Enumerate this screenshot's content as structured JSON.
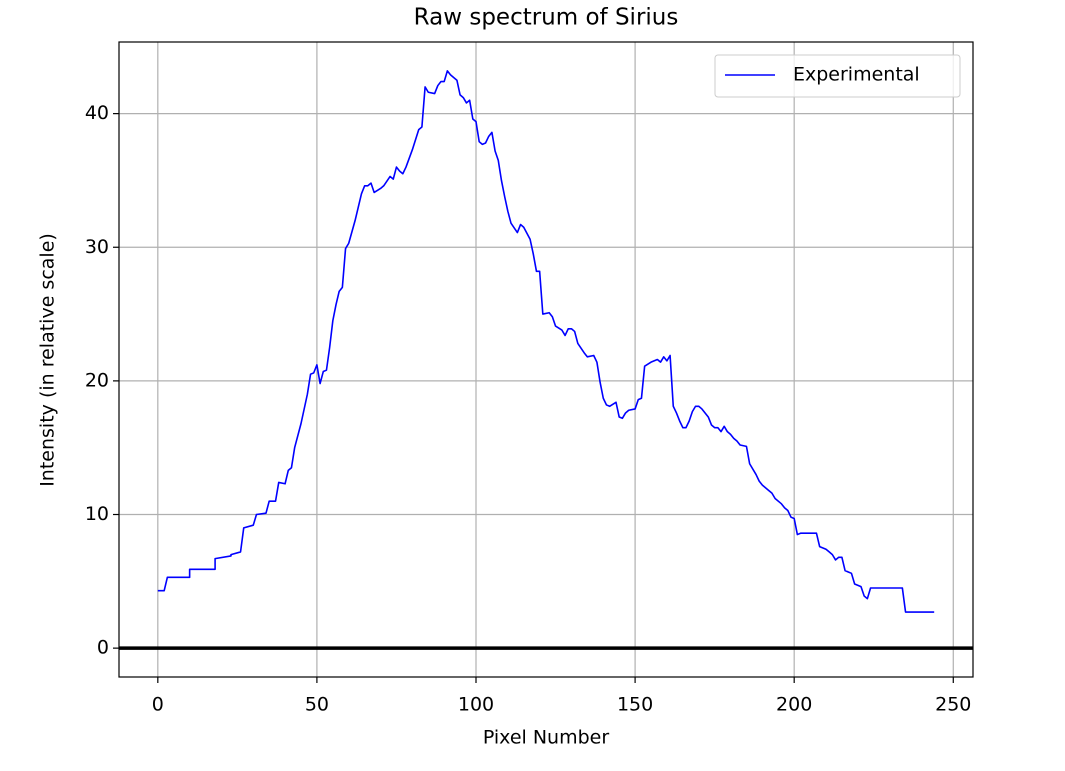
{
  "chart_data": {
    "type": "line",
    "title": "Raw spectrum of Sirius",
    "x_label": "Pixel Number",
    "y_label": "Intensity (in relative scale)",
    "xlim": [
      -12.2,
      256.2
    ],
    "ylim": [
      -2.16,
      45.36
    ],
    "xticks": [
      0,
      50,
      100,
      150,
      200,
      250
    ],
    "yticks": [
      0,
      10,
      20,
      30,
      40
    ],
    "grid": true,
    "legend": "upper right",
    "hline": 0,
    "series": [
      {
        "name": "Experimental",
        "color": "#0000ff",
        "x": [
          0,
          2,
          3,
          10,
          10,
          18,
          18,
          23,
          23,
          26,
          27,
          30,
          31,
          34,
          35,
          37,
          38,
          40,
          41,
          42,
          43,
          45,
          47,
          48,
          49,
          50,
          51,
          52,
          53,
          54,
          55,
          56,
          57,
          58,
          59,
          60,
          62,
          63,
          64,
          65,
          66,
          67,
          68,
          70,
          71,
          73,
          74,
          75,
          76,
          77,
          78,
          80,
          82,
          83,
          84,
          85,
          87,
          88,
          89,
          90,
          91,
          92,
          94,
          95,
          96,
          97,
          98,
          99,
          100,
          101,
          102,
          103,
          104,
          105,
          106,
          107,
          108,
          109,
          110,
          111,
          113,
          114,
          115,
          117,
          118,
          119,
          120,
          121,
          123,
          124,
          125,
          127,
          128,
          129,
          130,
          131,
          132,
          134,
          135,
          137,
          138,
          139,
          140,
          141,
          142,
          144,
          145,
          146,
          147,
          148,
          150,
          151,
          152,
          153,
          155,
          157,
          158,
          159,
          160,
          161,
          162,
          163,
          164,
          165,
          166,
          167,
          168,
          169,
          170,
          171,
          172,
          173,
          174,
          175,
          176,
          177,
          178,
          179,
          180,
          181,
          182,
          183,
          185,
          186,
          188,
          189,
          190,
          192,
          193,
          194,
          196,
          197,
          198,
          199,
          200,
          201,
          202,
          207,
          208,
          210,
          211,
          212,
          213,
          214,
          215,
          216,
          217,
          218,
          219,
          221,
          222,
          223,
          224,
          230,
          234,
          235,
          244
        ],
        "values": [
          4.3,
          4.3,
          5.3,
          5.3,
          5.9,
          5.9,
          6.7,
          6.9,
          7.0,
          7.2,
          9.0,
          9.2,
          10.0,
          10.1,
          11.0,
          11.0,
          12.4,
          12.3,
          13.3,
          13.5,
          15.0,
          16.8,
          19.0,
          20.5,
          20.6,
          21.2,
          19.8,
          20.7,
          20.8,
          22.5,
          24.5,
          25.7,
          26.7,
          27.0,
          29.9,
          30.3,
          32.0,
          33.0,
          34.0,
          34.6,
          34.6,
          34.8,
          34.1,
          34.4,
          34.6,
          35.3,
          35.1,
          36.0,
          35.7,
          35.5,
          36.0,
          37.3,
          38.8,
          39.0,
          42.0,
          41.6,
          41.5,
          42.1,
          42.4,
          42.4,
          43.2,
          42.9,
          42.5,
          41.4,
          41.2,
          40.8,
          41.0,
          39.6,
          39.4,
          37.9,
          37.7,
          37.8,
          38.3,
          38.6,
          37.2,
          36.5,
          35.0,
          33.8,
          32.7,
          31.8,
          31.1,
          31.7,
          31.5,
          30.6,
          29.5,
          28.2,
          28.2,
          25.0,
          25.1,
          24.8,
          24.1,
          23.8,
          23.4,
          23.9,
          23.9,
          23.7,
          22.8,
          22.1,
          21.8,
          21.9,
          21.4,
          19.9,
          18.7,
          18.2,
          18.1,
          18.4,
          17.3,
          17.2,
          17.6,
          17.8,
          17.9,
          18.6,
          18.7,
          21.1,
          21.4,
          21.6,
          21.4,
          21.8,
          21.5,
          21.9,
          18.1,
          17.6,
          17.0,
          16.5,
          16.5,
          17.0,
          17.7,
          18.1,
          18.1,
          17.9,
          17.6,
          17.3,
          16.7,
          16.5,
          16.5,
          16.2,
          16.6,
          16.2,
          16.0,
          15.7,
          15.5,
          15.2,
          15.1,
          13.8,
          13.0,
          12.5,
          12.2,
          11.8,
          11.6,
          11.2,
          10.8,
          10.5,
          10.3,
          9.8,
          9.7,
          8.5,
          8.6,
          8.6,
          7.6,
          7.4,
          7.2,
          7.0,
          6.6,
          6.8,
          6.8,
          5.8,
          5.7,
          5.6,
          4.8,
          4.6,
          3.9,
          3.7,
          4.5,
          4.5,
          4.5,
          2.7,
          2.7
        ]
      }
    ]
  }
}
